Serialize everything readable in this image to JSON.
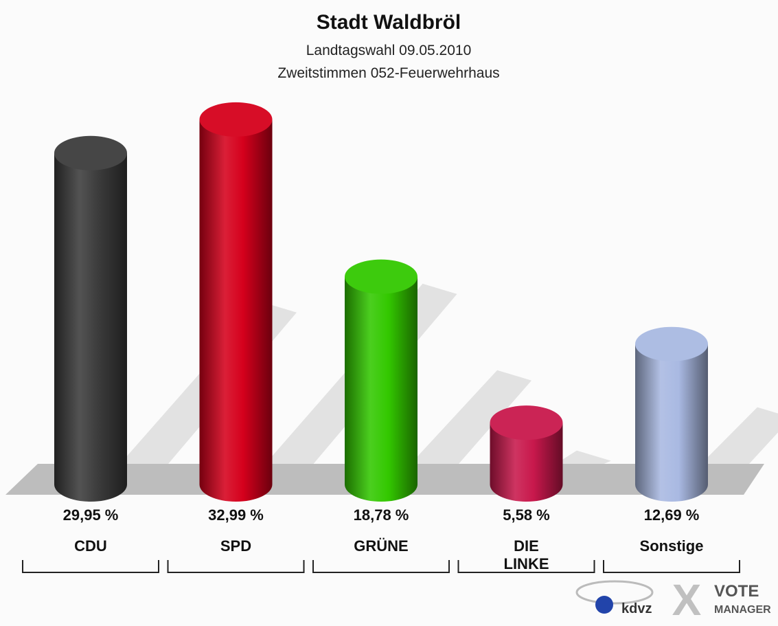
{
  "chart_data": {
    "type": "bar",
    "title": "Stadt Waldbröl",
    "subtitle": [
      "Landtagswahl 09.05.2010",
      "Zweitstimmen 052-Feuerwehrhaus"
    ],
    "categories": [
      "CDU",
      "SPD",
      "GRÜNE",
      "DIE LINKE",
      "Sonstige"
    ],
    "values": [
      29.95,
      32.99,
      18.78,
      5.58,
      12.69
    ],
    "value_labels": [
      "29,95 %",
      "32,99 %",
      "18,78 %",
      "5,58 %",
      "12,69 %"
    ],
    "colors": [
      "#3c3c3c",
      "#d5001c",
      "#33c800",
      "#c8184c",
      "#a9b9e2"
    ]
  },
  "logo": {
    "left": "kdvz",
    "right": [
      "VOTE",
      "MANAGER"
    ]
  }
}
